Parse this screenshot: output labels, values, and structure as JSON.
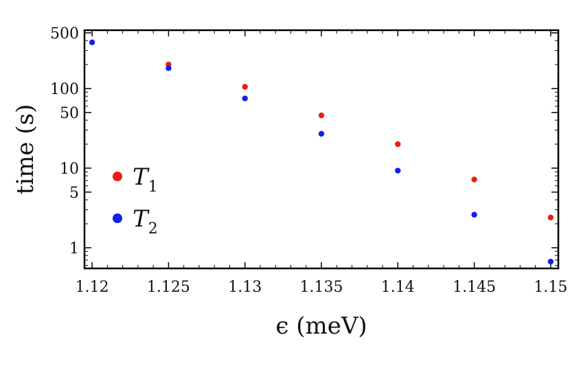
{
  "chart_data": {
    "type": "scatter",
    "xlabel": "ϵ (meV)",
    "ylabel": "time (s)",
    "xlim": [
      1.1195,
      1.1505
    ],
    "ylim": [
      0.55,
      540
    ],
    "yscale": "log",
    "grid": false,
    "legend_position": "left-middle",
    "x_ticks": [
      1.12,
      1.125,
      1.13,
      1.135,
      1.14,
      1.145,
      1.15
    ],
    "x_tick_labels": [
      "1.12",
      "1.125",
      "1.13",
      "1.135",
      "1.14",
      "1.145",
      "1.15"
    ],
    "y_ticks": [
      1,
      5,
      10,
      50,
      100,
      500
    ],
    "y_tick_labels": [
      "1",
      "5",
      "10",
      "50",
      "100",
      "500"
    ],
    "series": [
      {
        "name": "T1",
        "symbol": "T",
        "subscript": "1",
        "color": "#ee1d11",
        "x": [
          1.125,
          1.13,
          1.135,
          1.14,
          1.145,
          1.15
        ],
        "y": [
          200,
          105,
          46,
          20,
          7.2,
          2.4
        ]
      },
      {
        "name": "T2",
        "symbol": "T",
        "subscript": "2",
        "color": "#1020ee",
        "x": [
          1.12,
          1.125,
          1.13,
          1.135,
          1.14,
          1.145,
          1.15
        ],
        "y": [
          380,
          180,
          75,
          27,
          9.3,
          2.6,
          0.67
        ]
      }
    ]
  }
}
